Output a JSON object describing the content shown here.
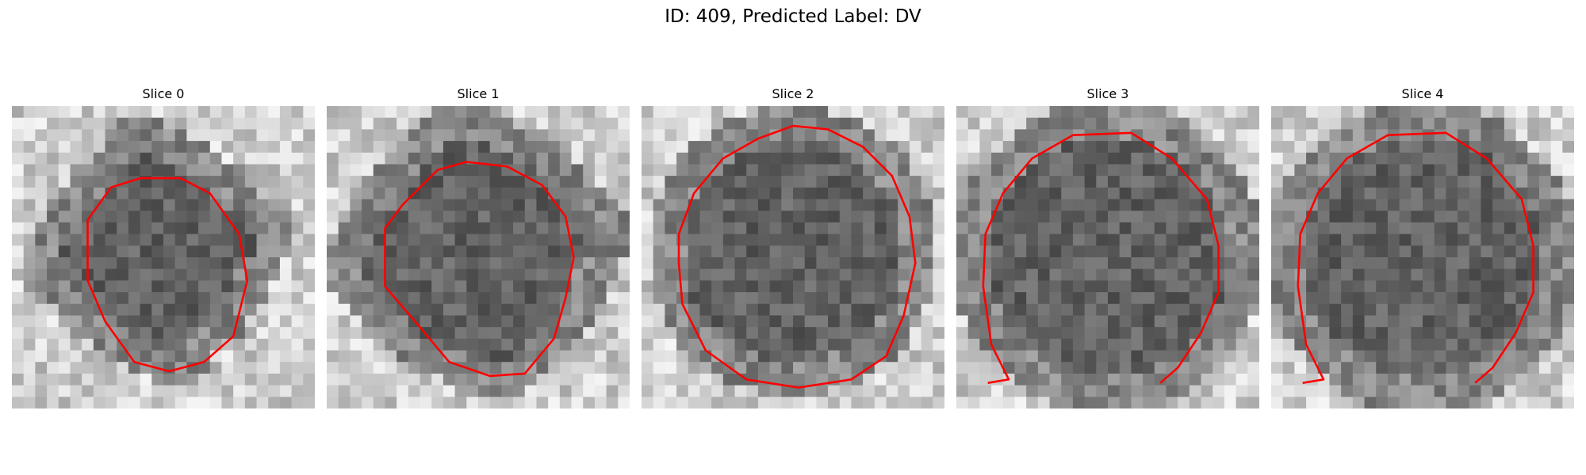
{
  "figure": {
    "title": "ID: 409, Predicted Label: DV"
  },
  "slices": [
    {
      "title": "Slice 0"
    },
    {
      "title": "Slice 1"
    },
    {
      "title": "Slice 2"
    },
    {
      "title": "Slice 3"
    },
    {
      "title": "Slice 4"
    }
  ],
  "colors": {
    "contour": "#ff0000",
    "colormap": "gray"
  }
}
